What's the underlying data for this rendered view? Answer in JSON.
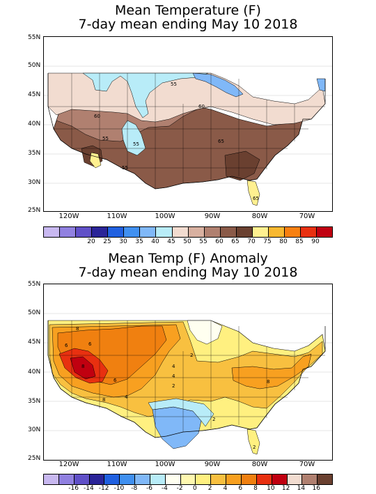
{
  "panel1": {
    "title_line1": "Mean Temperature (F)",
    "title_line2": "7-day mean ending May 10 2018",
    "lat_labels": [
      "55N",
      "50N",
      "45N",
      "40N",
      "35N",
      "30N",
      "25N"
    ],
    "lon_labels": [
      "120W",
      "110W",
      "100W",
      "90W",
      "80W",
      "70W"
    ],
    "contour_labels": [
      "55",
      "60",
      "60",
      "55",
      "55",
      "65",
      "55",
      "65"
    ],
    "colorbar": {
      "colors": [
        "#c8b8f0",
        "#9080e0",
        "#6050c8",
        "#2a2498",
        "#2060e0",
        "#4090f0",
        "#80b8f8",
        "#b8ecf8",
        "#f2dcd0",
        "#d8b0a0",
        "#b08070",
        "#8a5a48",
        "#6a4030",
        "#fff090",
        "#f8b830",
        "#f88010",
        "#e83010",
        "#c00010"
      ],
      "labels": [
        "20",
        "25",
        "30",
        "35",
        "40",
        "45",
        "50",
        "55",
        "60",
        "65",
        "70",
        "75",
        "80",
        "85",
        "90"
      ]
    }
  },
  "panel2": {
    "title_line1": "Mean Temp (F) Anomaly",
    "title_line2": "7-day mean ending May 10 2018",
    "lat_labels": [
      "55N",
      "50N",
      "45N",
      "40N",
      "35N",
      "30N",
      "25N"
    ],
    "lon_labels": [
      "120W",
      "110W",
      "100W",
      "90W",
      "80W",
      "70W"
    ],
    "contour_labels": [
      "8",
      "6",
      "6",
      "8",
      "2",
      "4",
      "4",
      "4",
      "2",
      "8",
      "8",
      "2",
      "6",
      "2"
    ],
    "colorbar": {
      "colors": [
        "#c8b8f0",
        "#9080e0",
        "#6050c8",
        "#2a2498",
        "#2060e0",
        "#4090f0",
        "#80b8f8",
        "#b8ecf8",
        "#fffff0",
        "#fff8b0",
        "#fff080",
        "#f8c040",
        "#f8a020",
        "#f08010",
        "#e83010",
        "#c00010",
        "#f2dcd0",
        "#b08070",
        "#6a4030"
      ],
      "labels": [
        "-16",
        "-14",
        "-12",
        "-10",
        "-8",
        "-6",
        "-4",
        "-2",
        "0",
        "2",
        "4",
        "6",
        "8",
        "10",
        "12",
        "14",
        "16"
      ]
    }
  }
}
